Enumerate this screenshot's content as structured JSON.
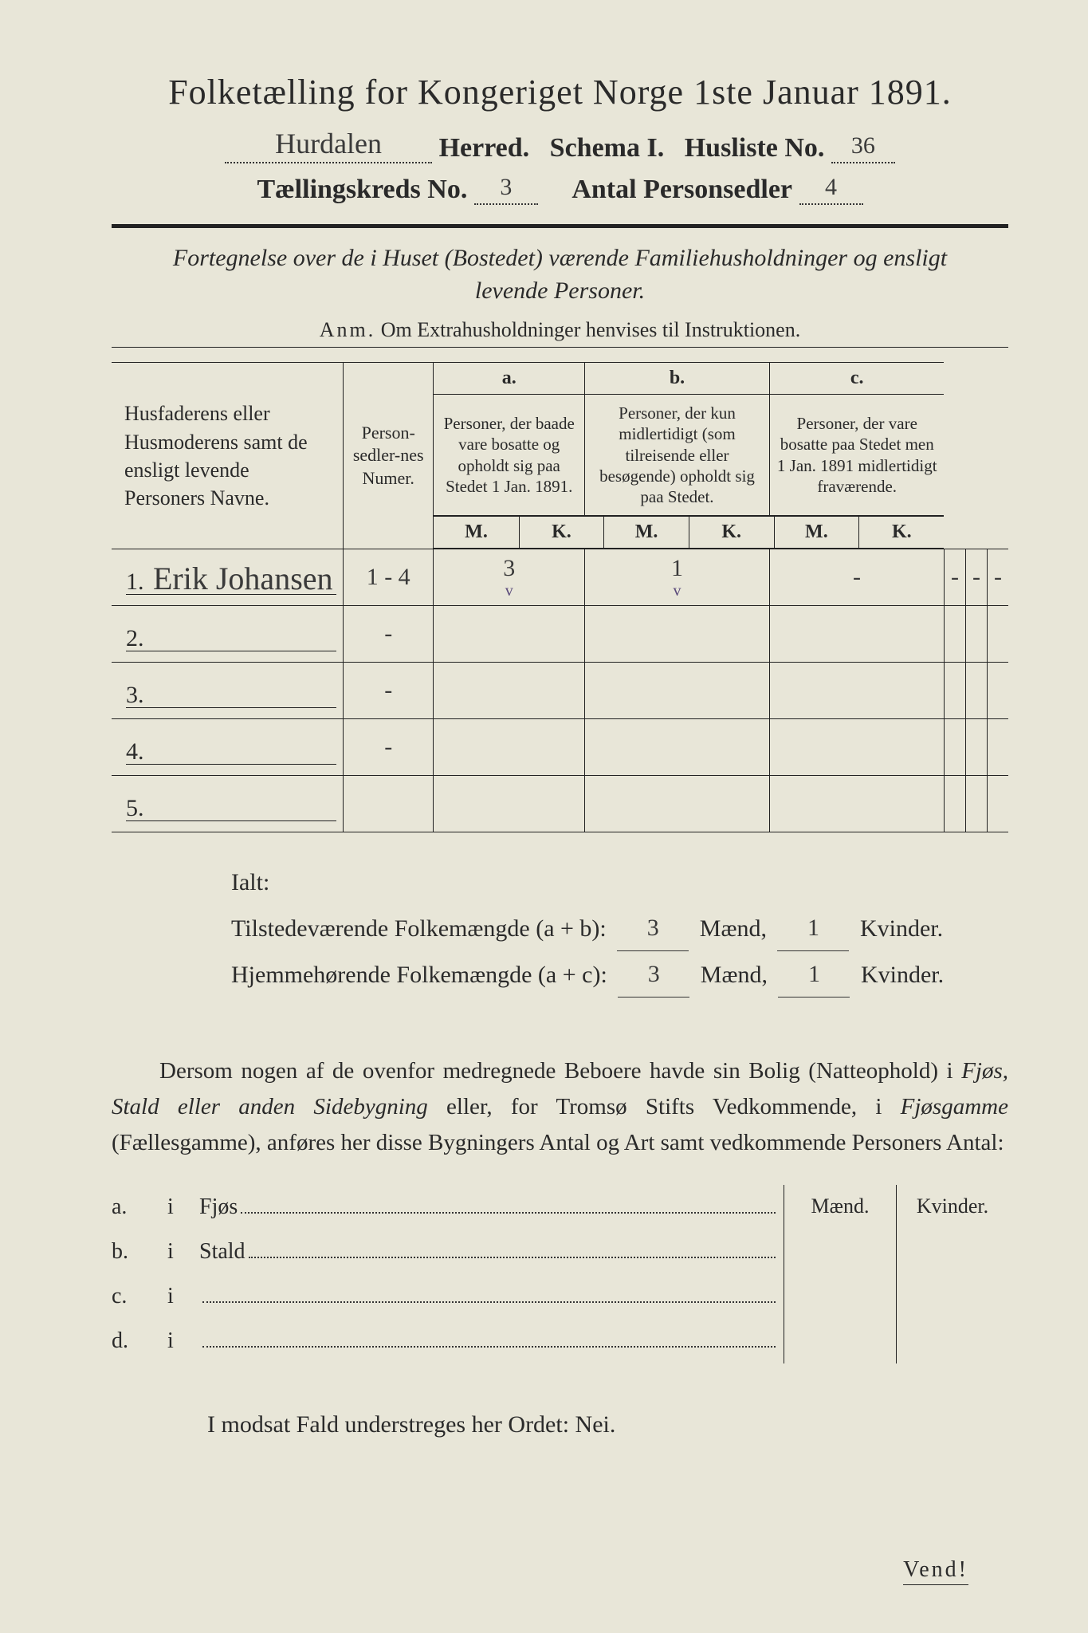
{
  "title": "Folketælling for Kongeriget Norge 1ste Januar 1891.",
  "header": {
    "herred_hw": "Hurdalen",
    "herred_label": "Herred.",
    "schema_label": "Schema I.",
    "husliste_label": "Husliste No.",
    "husliste_no_hw": "36",
    "kreds_label": "Tællingskreds No.",
    "kreds_no_hw": "3",
    "antal_label": "Antal Personsedler",
    "antal_hw": "4"
  },
  "subtitle": "Fortegnelse over de i Huset (Bostedet) værende Familiehusholdninger og ensligt levende Personer.",
  "anm_label": "Anm.",
  "anm_text": "Om Extrahusholdninger henvises til Instruktionen.",
  "table": {
    "col_names": "Husfaderens eller Husmoderens samt de ensligt levende Personers Navne.",
    "col_personsedler": "Person-sedler-nes Numer.",
    "col_a_letter": "a.",
    "col_a": "Personer, der baade vare bosatte og opholdt sig paa Stedet 1 Jan. 1891.",
    "col_b_letter": "b.",
    "col_b": "Personer, der kun midlertidigt (som tilreisende eller besøgende) opholdt sig paa Stedet.",
    "col_c_letter": "c.",
    "col_c": "Personer, der vare bosatte paa Stedet men 1 Jan. 1891 midlertidigt fraværende.",
    "mk_m": "M.",
    "mk_k": "K.",
    "rows": [
      {
        "n": "1.",
        "name": "Erik Johansen",
        "ps": "1 - 4",
        "am": "3",
        "ak": "1",
        "bm": "-",
        "bk": "-",
        "cm": "-",
        "ck": "-",
        "vm": "v",
        "vk": "v"
      },
      {
        "n": "2.",
        "name": "",
        "ps": "-",
        "am": "",
        "ak": "",
        "bm": "",
        "bk": "",
        "cm": "",
        "ck": ""
      },
      {
        "n": "3.",
        "name": "",
        "ps": "-",
        "am": "",
        "ak": "",
        "bm": "",
        "bk": "",
        "cm": "",
        "ck": ""
      },
      {
        "n": "4.",
        "name": "",
        "ps": "-",
        "am": "",
        "ak": "",
        "bm": "",
        "bk": "",
        "cm": "",
        "ck": ""
      },
      {
        "n": "5.",
        "name": "",
        "ps": "",
        "am": "",
        "ak": "",
        "bm": "",
        "bk": "",
        "cm": "",
        "ck": ""
      }
    ]
  },
  "ialt": {
    "label": "Ialt:",
    "line1_a": "Tilstedeværende Folkemængde (a + b):",
    "line2_a": "Hjemmehørende Folkemængde (a + c):",
    "maend": "Mænd,",
    "kvinder": "Kvinder.",
    "v1m": "3",
    "v1k": "1",
    "v2m": "3",
    "v2k": "1"
  },
  "para": "Dersom nogen af de ovenfor medregnede Beboere havde sin Bolig (Natteophold) i Fjøs, Stald eller anden Sidebygning eller, for Tromsø Stifts Vedkommende, i Fjøsgamme (Fællesgamme), anføres her disse Bygningers Antal og Art samt vedkommende Personers Antal:",
  "lower": {
    "hdr_m": "Mænd.",
    "hdr_k": "Kvinder.",
    "rows": [
      {
        "lab": "a.",
        "i": "i",
        "txt": "Fjøs"
      },
      {
        "lab": "b.",
        "i": "i",
        "txt": "Stald"
      },
      {
        "lab": "c.",
        "i": "i",
        "txt": ""
      },
      {
        "lab": "d.",
        "i": "i",
        "txt": ""
      }
    ]
  },
  "nei": "I modsat Fald understreges her Ordet: Nei.",
  "vend": "Vend!"
}
